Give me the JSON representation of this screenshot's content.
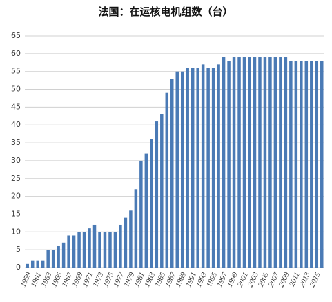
{
  "chart_data": {
    "type": "bar",
    "title": "法国：在运核电机组数（台）",
    "categories": [
      "1959",
      null,
      "1961",
      null,
      "1963",
      null,
      "1965",
      null,
      "1967",
      null,
      "1969",
      null,
      "1971",
      null,
      "1973",
      null,
      "1975",
      null,
      "1977",
      null,
      "1979",
      null,
      "1981",
      null,
      "1983",
      null,
      "1985",
      null,
      "1987",
      null,
      "1989",
      null,
      "1991",
      null,
      "1993",
      null,
      "1995",
      null,
      "1997",
      null,
      "1999",
      null,
      "2001",
      null,
      "2003",
      null,
      "2005",
      null,
      "2007",
      null,
      "2009",
      null,
      "2011",
      null,
      "2013",
      null,
      "2015",
      null
    ],
    "values": [
      1,
      2,
      2,
      2,
      5,
      5,
      6,
      7,
      9,
      9,
      10,
      10,
      11,
      12,
      10,
      10,
      10,
      10,
      12,
      14,
      16,
      22,
      30,
      32,
      36,
      41,
      43,
      49,
      53,
      55,
      55,
      56,
      56,
      56,
      57,
      56,
      56,
      57,
      59,
      58,
      59,
      59,
      59,
      59,
      59,
      59,
      59,
      59,
      59,
      59,
      59,
      58,
      58,
      58,
      58,
      58,
      58,
      58
    ],
    "color": "#4a7ab5",
    "ylim": [
      0,
      65
    ],
    "yticks": [
      0,
      5,
      10,
      15,
      20,
      25,
      30,
      35,
      40,
      45,
      50,
      55,
      60,
      65
    ],
    "grid": true
  }
}
